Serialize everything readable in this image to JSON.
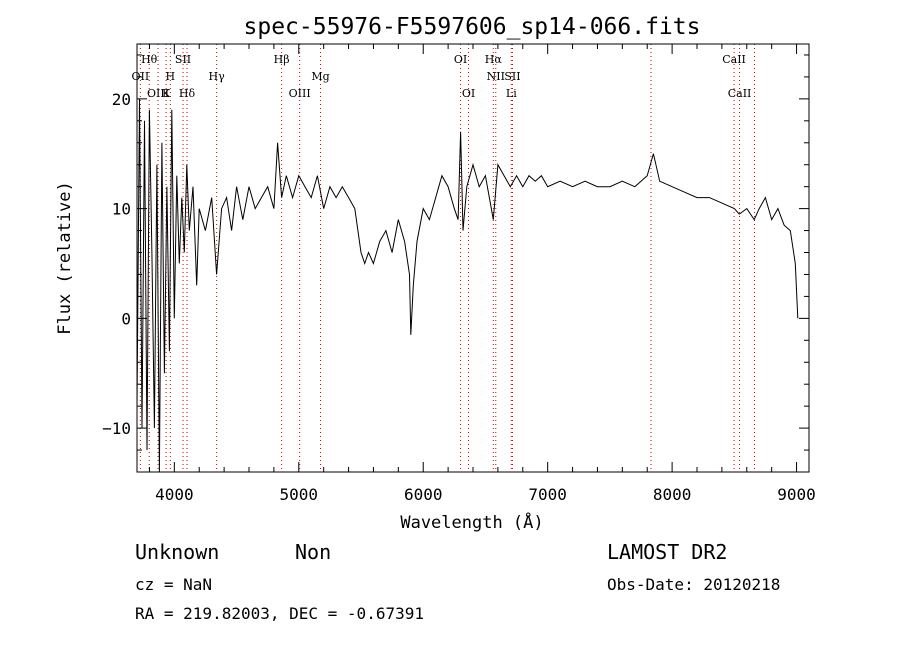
{
  "chart_data": {
    "type": "line",
    "title": "spec-55976-F5597606_sp14-066.fits",
    "xlabel": "Wavelength (Å)",
    "ylabel": "Flux (relative)",
    "xlim": [
      3700,
      9100
    ],
    "ylim": [
      -14,
      25
    ],
    "x_ticks": [
      4000,
      5000,
      6000,
      7000,
      8000,
      9000
    ],
    "y_ticks": [
      -10,
      0,
      10,
      20
    ],
    "grid": false,
    "spectrum": {
      "x": [
        3700,
        3720,
        3740,
        3760,
        3780,
        3800,
        3820,
        3840,
        3860,
        3880,
        3900,
        3920,
        3940,
        3960,
        3980,
        4000,
        4020,
        4040,
        4060,
        4080,
        4100,
        4120,
        4150,
        4180,
        4200,
        4250,
        4300,
        4340,
        4380,
        4420,
        4460,
        4500,
        4550,
        4600,
        4650,
        4700,
        4750,
        4800,
        4830,
        4862,
        4900,
        4950,
        5000,
        5050,
        5100,
        5150,
        5200,
        5250,
        5300,
        5350,
        5400,
        5450,
        5500,
        5530,
        5560,
        5600,
        5650,
        5700,
        5750,
        5800,
        5850,
        5890,
        5900,
        5920,
        5950,
        6000,
        6050,
        6100,
        6150,
        6200,
        6250,
        6280,
        6300,
        6320,
        6350,
        6400,
        6450,
        6500,
        6563,
        6600,
        6650,
        6700,
        6750,
        6800,
        6850,
        6900,
        6950,
        7000,
        7100,
        7200,
        7300,
        7400,
        7500,
        7600,
        7700,
        7800,
        7850,
        7900,
        8000,
        8100,
        8200,
        8300,
        8400,
        8500,
        8540,
        8600,
        8660,
        8700,
        8750,
        8800,
        8850,
        8900,
        8950,
        8990,
        9010
      ],
      "y": [
        -8,
        20,
        -10,
        18,
        -12,
        19,
        6,
        -10,
        14,
        -14,
        16,
        -5,
        12,
        -3,
        19,
        0,
        13,
        5,
        11,
        6,
        14,
        8,
        12,
        3,
        10,
        8,
        11,
        4,
        10,
        11,
        8,
        12,
        9,
        12,
        10,
        11,
        12,
        10,
        16,
        11,
        13,
        11,
        13,
        12,
        11,
        13,
        10,
        12,
        11,
        12,
        11,
        10,
        6,
        5,
        6,
        5,
        7,
        8,
        6,
        9,
        7,
        4,
        -1.5,
        3,
        7,
        10,
        9,
        11,
        13,
        12,
        10,
        9,
        17,
        8,
        12,
        14,
        12,
        13,
        9,
        14,
        13,
        12,
        13,
        12,
        13,
        12.5,
        13,
        12,
        12.5,
        12,
        12.5,
        12,
        12,
        12.5,
        12,
        13,
        15,
        12.5,
        12,
        11.5,
        11,
        11,
        10.5,
        10,
        9.5,
        10,
        9,
        10,
        11,
        9,
        10,
        8.5,
        8,
        5,
        0
      ]
    },
    "line_labels": [
      {
        "text": "Hθ",
        "row": 0,
        "wavelength": 3798
      },
      {
        "text": "SII",
        "row": 0,
        "wavelength": 4070
      },
      {
        "text": "Hβ",
        "row": 0,
        "wavelength": 4862
      },
      {
        "text": "OI",
        "row": 0,
        "wavelength": 6300
      },
      {
        "text": "Hα",
        "row": 0,
        "wavelength": 6563
      },
      {
        "text": "CaII",
        "row": 0,
        "wavelength": 8498
      },
      {
        "text": "OII",
        "row": 1,
        "wavelength": 3727
      },
      {
        "text": "H",
        "row": 1,
        "wavelength": 3968
      },
      {
        "text": "Hγ",
        "row": 1,
        "wavelength": 4340
      },
      {
        "text": "Mg",
        "row": 1,
        "wavelength": 5175
      },
      {
        "text": "NII",
        "row": 1,
        "wavelength": 6583
      },
      {
        "text": "SII",
        "row": 1,
        "wavelength": 6717
      },
      {
        "text": "OIII",
        "row": 2,
        "wavelength": 3869
      },
      {
        "text": "K",
        "row": 2,
        "wavelength": 3934
      },
      {
        "text": "Hδ",
        "row": 2,
        "wavelength": 4102
      },
      {
        "text": "OIII",
        "row": 2,
        "wavelength": 5007
      },
      {
        "text": "OI",
        "row": 2,
        "wavelength": 6364
      },
      {
        "text": "Li",
        "row": 2,
        "wavelength": 6708
      },
      {
        "text": "CaII",
        "row": 2,
        "wavelength": 8542
      }
    ],
    "guide_lines": [
      3727,
      3798,
      3869,
      3934,
      3968,
      4070,
      4102,
      4340,
      4862,
      5007,
      5175,
      6300,
      6364,
      6563,
      6583,
      6708,
      6717,
      7830,
      8498,
      8542,
      8662
    ],
    "guide_color": "#cc0000"
  },
  "info": {
    "class": "Unknown",
    "subclass": "Non",
    "survey": "LAMOST DR2",
    "cz": "cz = NaN",
    "obs_date": "Obs-Date: 20120218",
    "radec": "RA = 219.82003, DEC =  -0.67391"
  }
}
